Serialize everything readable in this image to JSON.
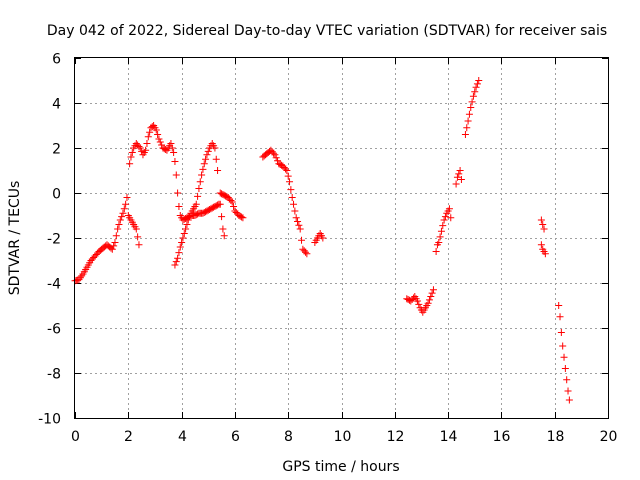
{
  "chart_data": {
    "type": "scatter",
    "title": "Day 042 of 2022, Sidereal Day-to-day VTEC variation (SDTVAR) for receiver sais",
    "xlabel": "GPS time / hours",
    "ylabel": "SDTVAR / TECUs",
    "xlim": [
      0,
      20
    ],
    "ylim": [
      -10,
      6
    ],
    "xticks": [
      "0",
      "2",
      "4",
      "6",
      "8",
      "10",
      "12",
      "14",
      "16",
      "18",
      "20"
    ],
    "yticks": [
      "-10",
      "-8",
      "-6",
      "-4",
      "-2",
      "0",
      "2",
      "4",
      "6"
    ],
    "grid": true,
    "marker": "+",
    "color": "#ff0000",
    "series": [
      {
        "name": "SDTVAR",
        "control_points": [
          [
            0.0,
            -3.9
          ],
          [
            0.15,
            -3.85
          ],
          [
            0.3,
            -3.6
          ],
          [
            0.4,
            -3.4
          ],
          [
            0.5,
            -3.2
          ],
          [
            0.6,
            -3.0
          ],
          [
            0.75,
            -2.8
          ],
          [
            0.9,
            -2.6
          ],
          [
            1.0,
            -2.5
          ],
          [
            1.1,
            -2.4
          ],
          [
            1.2,
            -2.3
          ],
          [
            1.3,
            -2.4
          ],
          [
            1.4,
            -2.5
          ],
          [
            1.5,
            -2.2
          ],
          [
            1.6,
            -1.6
          ],
          [
            1.7,
            -1.2
          ],
          [
            1.8,
            -0.9
          ],
          [
            1.9,
            -0.5
          ],
          [
            1.95,
            -0.2
          ],
          [
            2.0,
            -1.0
          ],
          [
            2.1,
            -1.2
          ],
          [
            2.2,
            -1.4
          ],
          [
            2.3,
            -1.6
          ],
          [
            2.4,
            -2.3
          ],
          [
            2.05,
            1.3
          ],
          [
            2.1,
            1.6
          ],
          [
            2.2,
            2.0
          ],
          [
            2.3,
            2.2
          ],
          [
            2.45,
            2.0
          ],
          [
            2.55,
            1.7
          ],
          [
            2.65,
            1.9
          ],
          [
            2.75,
            2.5
          ],
          [
            2.85,
            2.9
          ],
          [
            2.95,
            3.0
          ],
          [
            3.05,
            2.8
          ],
          [
            3.15,
            2.4
          ],
          [
            3.3,
            2.0
          ],
          [
            3.45,
            1.9
          ],
          [
            3.6,
            2.2
          ],
          [
            3.7,
            1.8
          ],
          [
            3.75,
            1.4
          ],
          [
            3.8,
            0.8
          ],
          [
            3.85,
            0.0
          ],
          [
            3.9,
            -0.6
          ],
          [
            3.95,
            -1.0
          ],
          [
            4.05,
            -1.2
          ],
          [
            4.2,
            -1.1
          ],
          [
            4.35,
            -1.0
          ],
          [
            4.5,
            -1.0
          ],
          [
            4.65,
            -0.9
          ],
          [
            4.8,
            -0.9
          ],
          [
            4.95,
            -0.8
          ],
          [
            5.1,
            -0.7
          ],
          [
            5.25,
            -0.6
          ],
          [
            5.4,
            -0.5
          ],
          [
            3.75,
            -3.2
          ],
          [
            3.85,
            -2.9
          ],
          [
            3.95,
            -2.4
          ],
          [
            4.05,
            -2.0
          ],
          [
            4.15,
            -1.6
          ],
          [
            4.25,
            -1.2
          ],
          [
            4.35,
            -0.9
          ],
          [
            4.45,
            -0.7
          ],
          [
            4.55,
            -0.5
          ],
          [
            4.65,
            0.2
          ],
          [
            4.75,
            0.8
          ],
          [
            4.85,
            1.3
          ],
          [
            4.95,
            1.7
          ],
          [
            5.05,
            2.0
          ],
          [
            5.15,
            2.2
          ],
          [
            5.25,
            2.0
          ],
          [
            5.35,
            1.0
          ],
          [
            5.45,
            -0.5
          ],
          [
            5.55,
            -1.6
          ],
          [
            5.6,
            -1.9
          ],
          [
            5.45,
            0.0
          ],
          [
            5.6,
            -0.1
          ],
          [
            5.75,
            -0.2
          ],
          [
            5.9,
            -0.4
          ],
          [
            6.0,
            -0.8
          ],
          [
            6.15,
            -1.0
          ],
          [
            6.3,
            -1.1
          ],
          [
            7.05,
            1.6
          ],
          [
            7.35,
            1.9
          ],
          [
            7.5,
            1.7
          ],
          [
            7.65,
            1.3
          ],
          [
            7.8,
            1.2
          ],
          [
            7.95,
            1.0
          ],
          [
            8.05,
            0.5
          ],
          [
            8.15,
            -0.2
          ],
          [
            8.25,
            -0.8
          ],
          [
            8.3,
            -1.1
          ],
          [
            8.45,
            -1.6
          ],
          [
            8.5,
            -2.1
          ],
          [
            8.55,
            -2.5
          ],
          [
            8.7,
            -2.7
          ],
          [
            9.0,
            -2.2
          ],
          [
            9.1,
            -2.0
          ],
          [
            9.2,
            -1.8
          ],
          [
            9.3,
            -2.0
          ],
          [
            12.45,
            -4.7
          ],
          [
            12.6,
            -4.8
          ],
          [
            12.75,
            -4.6
          ],
          [
            12.85,
            -4.8
          ],
          [
            12.95,
            -5.1
          ],
          [
            13.05,
            -5.3
          ],
          [
            13.15,
            -5.1
          ],
          [
            13.25,
            -4.9
          ],
          [
            13.35,
            -4.6
          ],
          [
            13.45,
            -4.3
          ],
          [
            13.55,
            -2.6
          ],
          [
            13.6,
            -2.3
          ],
          [
            13.65,
            -2.2
          ],
          [
            13.85,
            -1.2
          ],
          [
            13.95,
            -0.9
          ],
          [
            14.05,
            -0.7
          ],
          [
            14.1,
            -1.1
          ],
          [
            14.3,
            0.4
          ],
          [
            14.35,
            0.7
          ],
          [
            14.45,
            1.0
          ],
          [
            14.5,
            0.6
          ],
          [
            14.65,
            2.6
          ],
          [
            14.75,
            3.2
          ],
          [
            14.85,
            3.8
          ],
          [
            14.95,
            4.3
          ],
          [
            15.05,
            4.7
          ],
          [
            15.15,
            5.0
          ],
          [
            17.5,
            -1.2
          ],
          [
            17.55,
            -1.4
          ],
          [
            17.6,
            -1.6
          ],
          [
            17.5,
            -2.3
          ],
          [
            17.55,
            -2.5
          ],
          [
            17.65,
            -2.7
          ],
          [
            18.15,
            -5.0
          ],
          [
            18.2,
            -5.5
          ],
          [
            18.25,
            -6.2
          ],
          [
            18.3,
            -6.8
          ],
          [
            18.35,
            -7.3
          ],
          [
            18.4,
            -7.8
          ],
          [
            18.45,
            -8.3
          ],
          [
            18.5,
            -8.8
          ],
          [
            18.55,
            -9.2
          ]
        ]
      }
    ]
  }
}
